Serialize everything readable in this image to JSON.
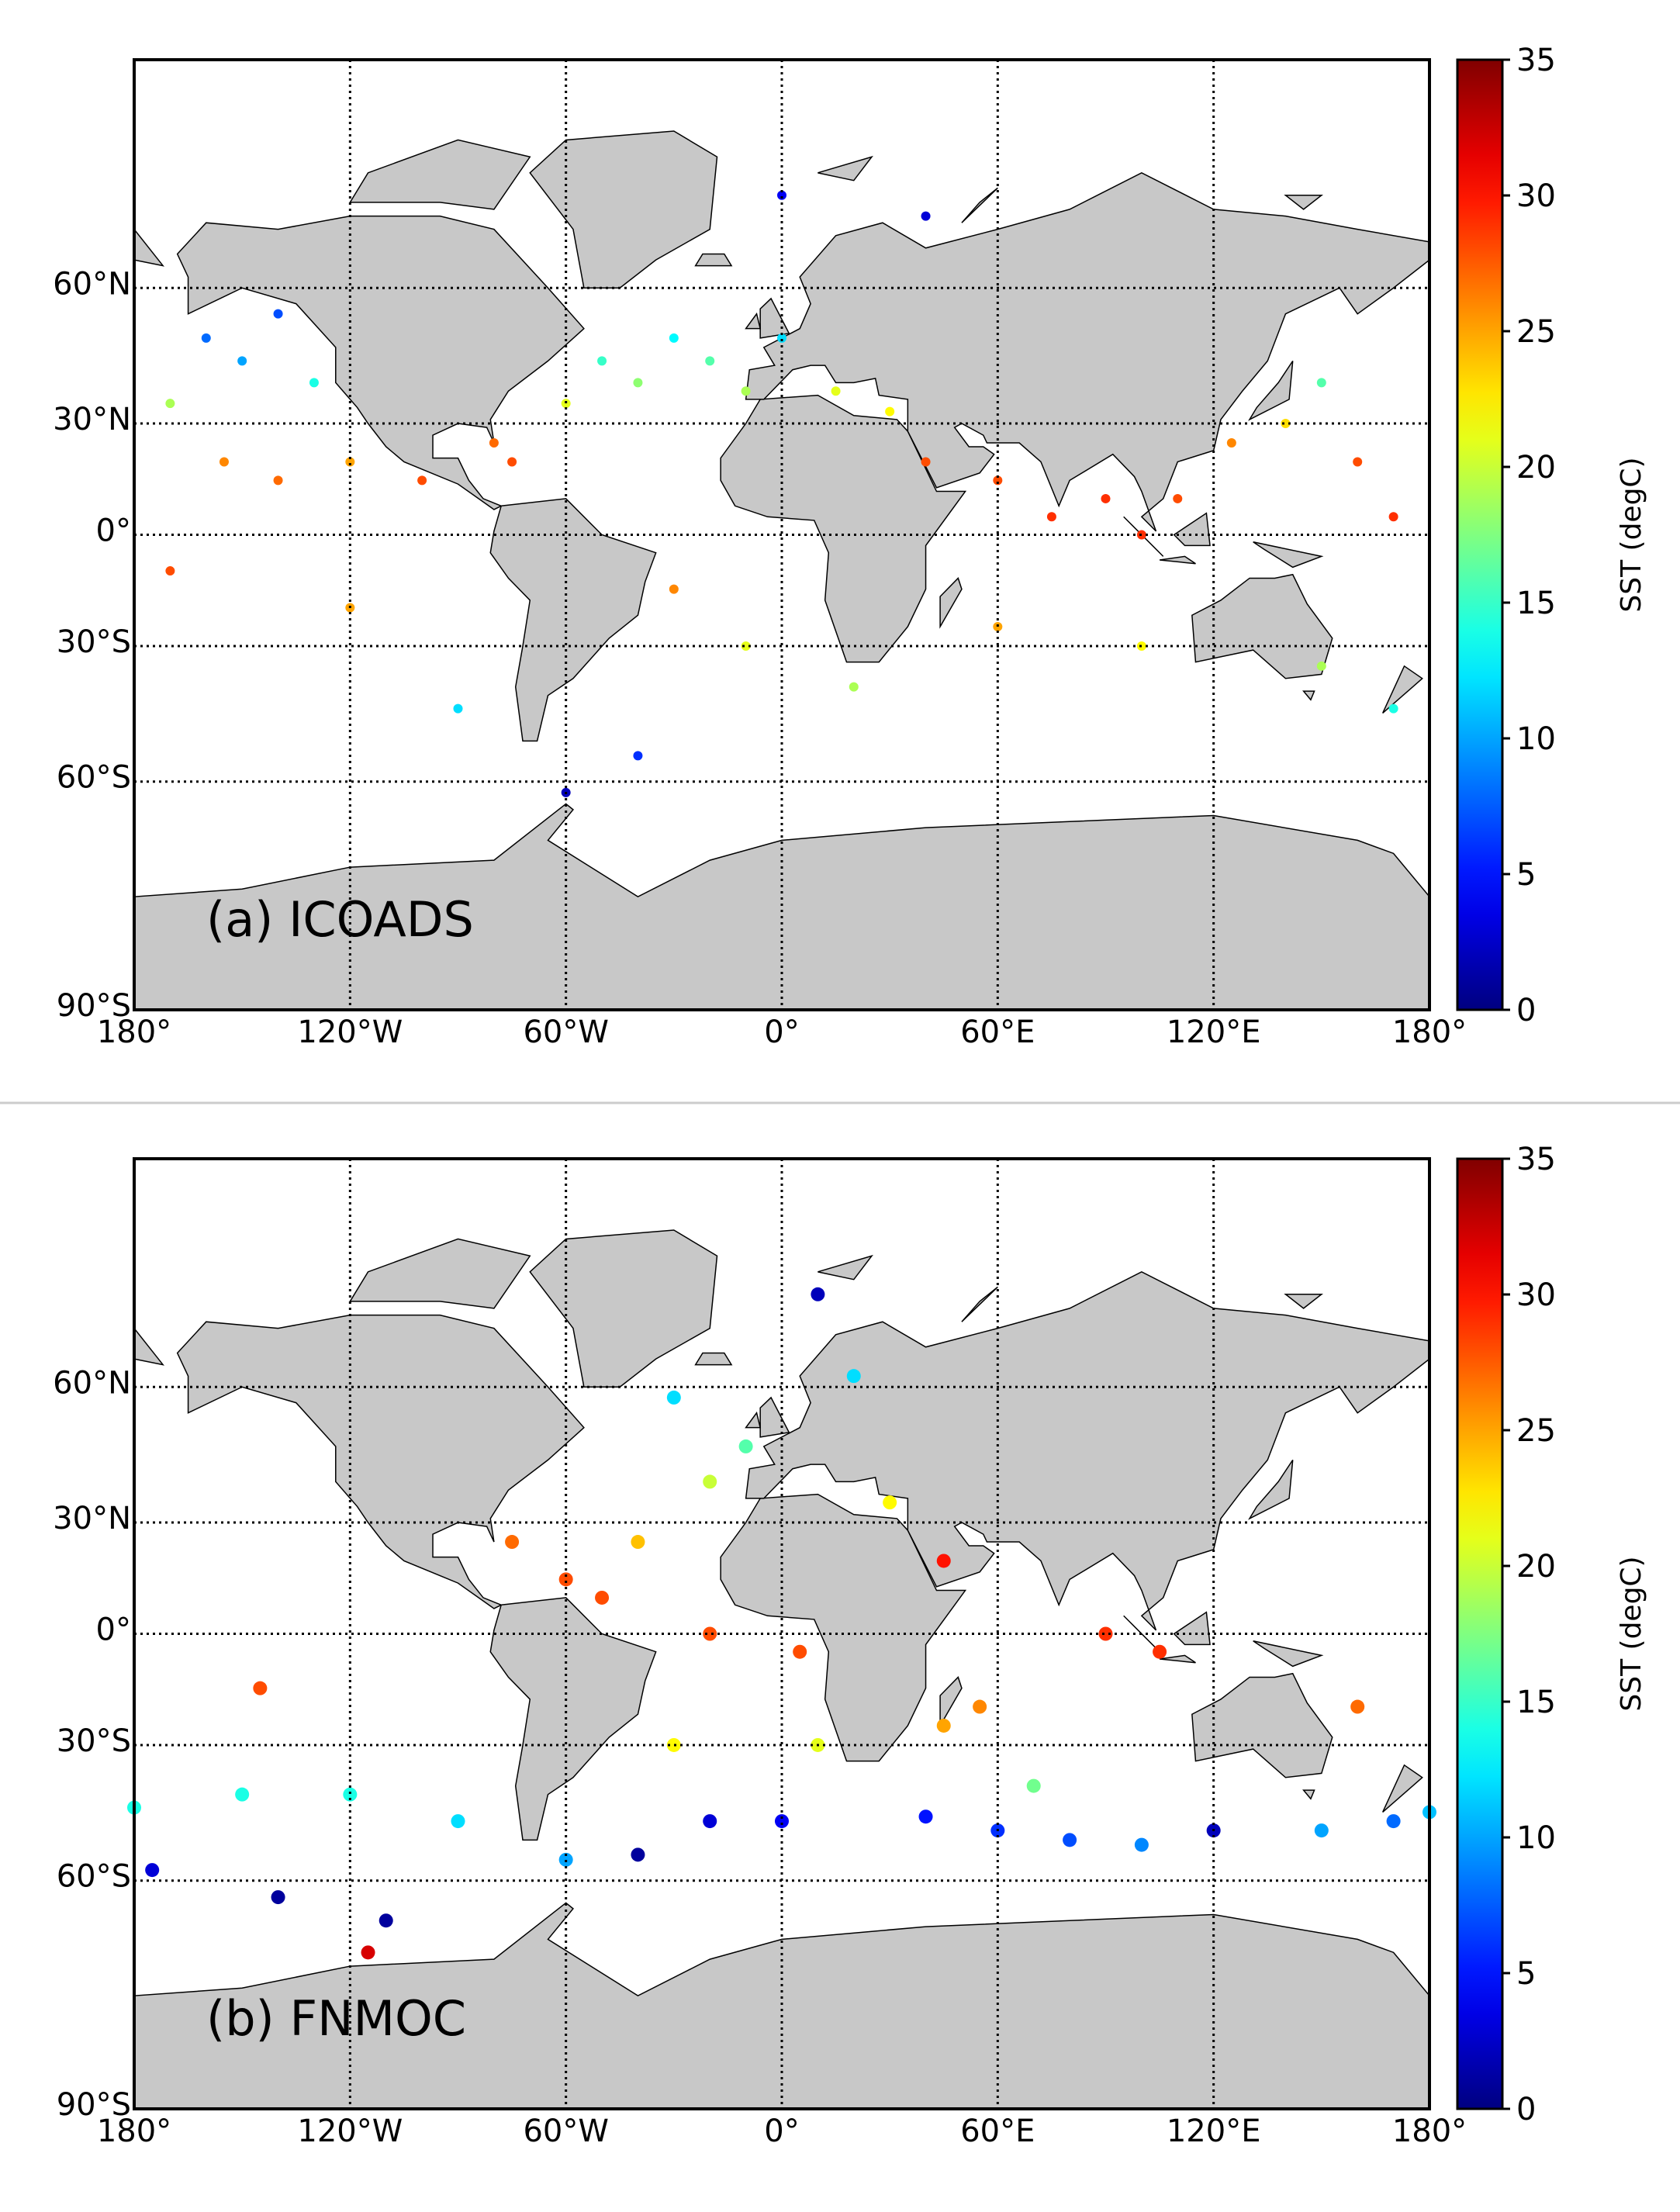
{
  "chart_data": [
    {
      "type": "scatter",
      "title": "(a) ICOADS",
      "projection": "miller",
      "colormap": "jet",
      "grid": true,
      "xlim": [
        -180,
        180
      ],
      "ylim": [
        -90,
        90
      ],
      "xticks": [
        {
          "value": -180,
          "label": "180°"
        },
        {
          "value": -120,
          "label": "120°W"
        },
        {
          "value": -60,
          "label": "60°W"
        },
        {
          "value": 0,
          "label": "0°"
        },
        {
          "value": 60,
          "label": "60°E"
        },
        {
          "value": 120,
          "label": "120°E"
        },
        {
          "value": 180,
          "label": "180°"
        }
      ],
      "yticks": [
        {
          "value": 60,
          "label": "60°N"
        },
        {
          "value": 30,
          "label": "30°N"
        },
        {
          "value": 0,
          "label": "0°"
        },
        {
          "value": -30,
          "label": "30°S"
        },
        {
          "value": -60,
          "label": "60°S"
        },
        {
          "value": -90,
          "label": "90°S"
        }
      ],
      "clim": [
        0,
        35
      ],
      "cticks": [
        0,
        5,
        10,
        15,
        20,
        25,
        30,
        35
      ],
      "clabel": "SST (degC)",
      "lon": [
        -160,
        -150,
        -140,
        -130,
        -170,
        -155,
        -140,
        -120,
        -100,
        -80,
        -75,
        -60,
        -50,
        -40,
        -30,
        -20,
        -10,
        0,
        15,
        30,
        40,
        60,
        75,
        90,
        100,
        110,
        125,
        140,
        150,
        160,
        170,
        -170,
        -120,
        -30,
        -10,
        20,
        60,
        100,
        150,
        170,
        -40,
        -90,
        -60,
        0,
        40
      ],
      "lat": [
        50,
        45,
        55,
        40,
        35,
        20,
        15,
        20,
        15,
        25,
        20,
        35,
        45,
        40,
        50,
        45,
        38,
        50,
        38,
        33,
        20,
        15,
        5,
        10,
        0,
        10,
        25,
        30,
        40,
        20,
        5,
        -10,
        -20,
        -15,
        -30,
        -40,
        -25,
        -30,
        -35,
        -45,
        -55,
        -45,
        -62,
        75,
        72
      ],
      "sst": [
        8,
        10,
        7,
        14,
        19,
        26,
        27,
        25,
        28,
        27,
        28,
        21,
        15,
        18,
        13,
        16,
        19,
        12,
        21,
        22,
        28,
        28,
        29,
        29,
        29,
        28,
        26,
        23,
        16,
        28,
        29,
        28,
        25,
        26,
        21,
        19,
        25,
        22,
        19,
        14,
        6,
        12,
        2,
        4,
        3
      ]
    },
    {
      "type": "scatter",
      "title": "(b) FNMOC",
      "projection": "miller",
      "colormap": "jet",
      "grid": true,
      "xlim": [
        -180,
        180
      ],
      "ylim": [
        -90,
        90
      ],
      "xticks": [
        {
          "value": -180,
          "label": "180°"
        },
        {
          "value": -120,
          "label": "120°W"
        },
        {
          "value": -60,
          "label": "60°W"
        },
        {
          "value": 0,
          "label": "0°"
        },
        {
          "value": 60,
          "label": "60°E"
        },
        {
          "value": 120,
          "label": "120°E"
        },
        {
          "value": 180,
          "label": "180°"
        }
      ],
      "yticks": [
        {
          "value": 60,
          "label": "60°N"
        },
        {
          "value": 30,
          "label": "30°N"
        },
        {
          "value": 0,
          "label": "0°"
        },
        {
          "value": -30,
          "label": "30°S"
        },
        {
          "value": -60,
          "label": "60°S"
        },
        {
          "value": -90,
          "label": "90°S"
        }
      ],
      "clim": [
        0,
        35
      ],
      "cticks": [
        0,
        5,
        10,
        15,
        20,
        25,
        30,
        35
      ],
      "clabel": "SST (degC)",
      "lon": [
        -180,
        -150,
        -120,
        -90,
        -60,
        -40,
        -20,
        0,
        40,
        60,
        80,
        100,
        120,
        150,
        170,
        180,
        -140,
        -110,
        -175,
        -115,
        -145,
        160,
        -60,
        -75,
        -50,
        -40,
        -20,
        -10,
        -30,
        10,
        20,
        5,
        -20,
        10,
        45,
        55,
        70,
        90,
        105,
        45,
        30,
        -30
      ],
      "lat": [
        -45,
        -42,
        -42,
        -48,
        -56,
        -55,
        -48,
        -48,
        -47,
        -50,
        -52,
        -53,
        -50,
        -50,
        -48,
        -46,
        -63,
        -67,
        -58,
        -72,
        -15,
        -20,
        15,
        25,
        10,
        25,
        40,
        48,
        58,
        75,
        62,
        -5,
        0,
        -30,
        -25,
        -20,
        -40,
        0,
        -5,
        20,
        35,
        -30
      ],
      "sst": [
        14,
        14,
        14,
        12,
        10,
        1,
        3,
        4,
        5,
        6,
        7,
        9,
        2,
        10,
        8,
        11,
        1,
        1,
        3,
        32,
        28,
        27,
        28,
        27,
        28,
        24,
        20,
        16,
        12,
        2,
        12,
        28,
        28,
        21,
        25,
        26,
        17,
        29,
        29,
        30,
        22,
        22
      ]
    }
  ]
}
